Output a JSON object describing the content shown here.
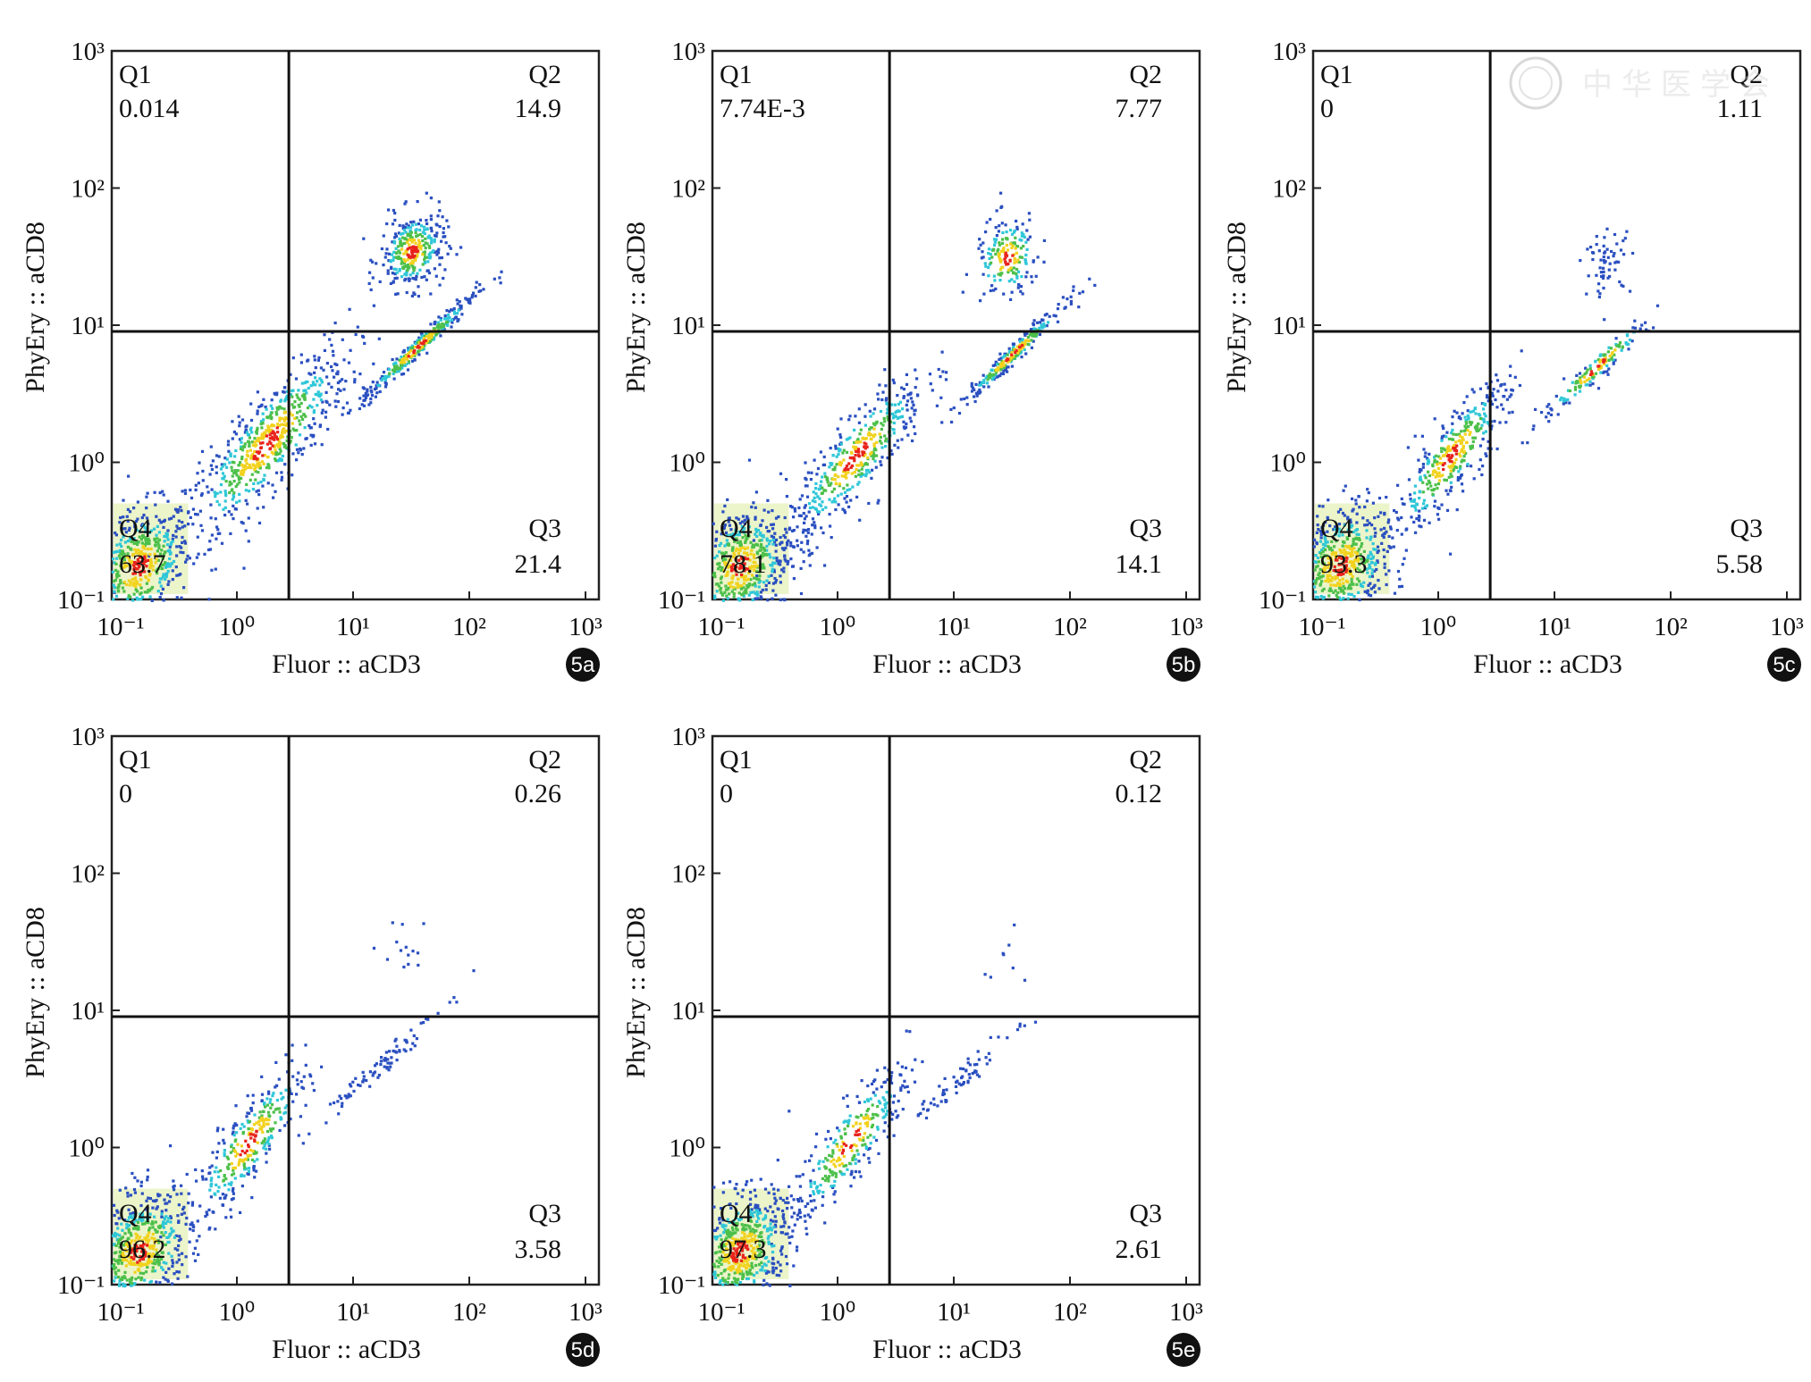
{
  "watermark": "中华医学会",
  "chart_data": [
    {
      "type": "scatter",
      "panel_label": "5a",
      "xlabel": "Fluor :: aCD3",
      "ylabel": "PhyEry :: aCD8",
      "xscale": "log",
      "yscale": "log",
      "xlim_log10": [
        -1,
        3
      ],
      "ylim_log10": [
        -1,
        3
      ],
      "x_ticks": [
        "10⁻¹",
        "10⁰",
        "10¹",
        "10²",
        "10³"
      ],
      "y_ticks": [
        "10⁻¹",
        "10⁰",
        "10¹",
        "10²",
        "10³"
      ],
      "gate": {
        "x": 2.8,
        "y": 9
      },
      "quadrants": {
        "Q1": {
          "label": "Q1",
          "value": "0.014"
        },
        "Q2": {
          "label": "Q2",
          "value": "14.9"
        },
        "Q3": {
          "label": "Q3",
          "value": "21.4"
        },
        "Q4": {
          "label": "Q4",
          "value": "63.7"
        }
      },
      "populations_log10": [
        {
          "cx": -0.85,
          "cy": -0.75,
          "sx": 0.22,
          "sy": 0.22,
          "rho": 0.3,
          "n": 520
        },
        {
          "cx": 0.25,
          "cy": 0.15,
          "sx": 0.35,
          "sy": 0.35,
          "rho": 0.85,
          "n": 650
        },
        {
          "cx": 1.5,
          "cy": 1.55,
          "sx": 0.14,
          "sy": 0.14,
          "rho": 0.2,
          "n": 320
        },
        {
          "cx": 1.55,
          "cy": 0.85,
          "sx": 0.25,
          "sy": 0.2,
          "rho": 0.98,
          "n": 320
        }
      ]
    },
    {
      "type": "scatter",
      "panel_label": "5b",
      "xlabel": "Fluor :: aCD3",
      "ylabel": "PhyEry :: aCD8",
      "xscale": "log",
      "yscale": "log",
      "xlim_log10": [
        -1,
        3
      ],
      "ylim_log10": [
        -1,
        3
      ],
      "x_ticks": [
        "10⁻¹",
        "10⁰",
        "10¹",
        "10²",
        "10³"
      ],
      "y_ticks": [
        "10⁻¹",
        "10⁰",
        "10¹",
        "10²",
        "10³"
      ],
      "gate": {
        "x": 2.8,
        "y": 9
      },
      "quadrants": {
        "Q1": {
          "label": "Q1",
          "value": "7.74E-3"
        },
        "Q2": {
          "label": "Q2",
          "value": "7.77"
        },
        "Q3": {
          "label": "Q3",
          "value": "14.1"
        },
        "Q4": {
          "label": "Q4",
          "value": "78.1"
        }
      },
      "populations_log10": [
        {
          "cx": -0.85,
          "cy": -0.75,
          "sx": 0.22,
          "sy": 0.22,
          "rho": 0.3,
          "n": 560
        },
        {
          "cx": 0.15,
          "cy": 0.05,
          "sx": 0.3,
          "sy": 0.3,
          "rho": 0.85,
          "n": 450
        },
        {
          "cx": 1.45,
          "cy": 1.5,
          "sx": 0.14,
          "sy": 0.15,
          "rho": 0.2,
          "n": 180
        },
        {
          "cx": 1.5,
          "cy": 0.8,
          "sx": 0.22,
          "sy": 0.18,
          "rho": 0.98,
          "n": 260
        }
      ]
    },
    {
      "type": "scatter",
      "panel_label": "5c",
      "xlabel": "Fluor :: aCD3",
      "ylabel": "PhyEry :: aCD8",
      "xscale": "log",
      "yscale": "log",
      "xlim_log10": [
        -1,
        3
      ],
      "ylim_log10": [
        -1,
        3
      ],
      "x_ticks": [
        "10⁻¹",
        "10⁰",
        "10¹",
        "10²",
        "10³"
      ],
      "y_ticks": [
        "10⁻¹",
        "10⁰",
        "10¹",
        "10²",
        "10³"
      ],
      "gate": {
        "x": 2.8,
        "y": 9
      },
      "quadrants": {
        "Q1": {
          "label": "Q1",
          "value": "0"
        },
        "Q2": {
          "label": "Q2",
          "value": "1.11"
        },
        "Q3": {
          "label": "Q3",
          "value": "5.58"
        },
        "Q4": {
          "label": "Q4",
          "value": "93.3"
        }
      },
      "populations_log10": [
        {
          "cx": -0.85,
          "cy": -0.75,
          "sx": 0.22,
          "sy": 0.22,
          "rho": 0.3,
          "n": 600
        },
        {
          "cx": 0.1,
          "cy": 0.05,
          "sx": 0.25,
          "sy": 0.28,
          "rho": 0.85,
          "n": 380
        },
        {
          "cx": 1.45,
          "cy": 1.45,
          "sx": 0.1,
          "sy": 0.12,
          "rho": 0.2,
          "n": 60
        },
        {
          "cx": 1.35,
          "cy": 0.7,
          "sx": 0.25,
          "sy": 0.2,
          "rho": 0.97,
          "n": 150
        }
      ]
    },
    {
      "type": "scatter",
      "panel_label": "5d",
      "xlabel": "Fluor :: aCD3",
      "ylabel": "PhyEry :: aCD8",
      "xscale": "log",
      "yscale": "log",
      "xlim_log10": [
        -1,
        3
      ],
      "ylim_log10": [
        -1,
        3
      ],
      "x_ticks": [
        "10⁻¹",
        "10⁰",
        "10¹",
        "10²",
        "10³"
      ],
      "y_ticks": [
        "10⁻¹",
        "10⁰",
        "10¹",
        "10²",
        "10³"
      ],
      "gate": {
        "x": 2.8,
        "y": 9
      },
      "quadrants": {
        "Q1": {
          "label": "Q1",
          "value": "0"
        },
        "Q2": {
          "label": "Q2",
          "value": "0.26"
        },
        "Q3": {
          "label": "Q3",
          "value": "3.58"
        },
        "Q4": {
          "label": "Q4",
          "value": "96.2"
        }
      },
      "populations_log10": [
        {
          "cx": -0.85,
          "cy": -0.75,
          "sx": 0.22,
          "sy": 0.22,
          "rho": 0.3,
          "n": 600
        },
        {
          "cx": 0.1,
          "cy": 0.05,
          "sx": 0.25,
          "sy": 0.28,
          "rho": 0.85,
          "n": 330
        },
        {
          "cx": 1.45,
          "cy": 1.5,
          "sx": 0.12,
          "sy": 0.12,
          "rho": 0.2,
          "n": 14
        },
        {
          "cx": 1.2,
          "cy": 0.6,
          "sx": 0.25,
          "sy": 0.2,
          "rho": 0.97,
          "n": 90
        }
      ]
    },
    {
      "type": "scatter",
      "panel_label": "5e",
      "xlabel": "Fluor :: aCD3",
      "ylabel": "PhyEry :: aCD8",
      "xscale": "log",
      "yscale": "log",
      "xlim_log10": [
        -1,
        3
      ],
      "ylim_log10": [
        -1,
        3
      ],
      "x_ticks": [
        "10⁻¹",
        "10⁰",
        "10¹",
        "10²",
        "10³"
      ],
      "y_ticks": [
        "10⁻¹",
        "10⁰",
        "10¹",
        "10²",
        "10³"
      ],
      "gate": {
        "x": 2.8,
        "y": 9
      },
      "quadrants": {
        "Q1": {
          "label": "Q1",
          "value": "0"
        },
        "Q2": {
          "label": "Q2",
          "value": "0.12"
        },
        "Q3": {
          "label": "Q3",
          "value": "2.61"
        },
        "Q4": {
          "label": "Q4",
          "value": "97.3"
        }
      },
      "populations_log10": [
        {
          "cx": -0.85,
          "cy": -0.75,
          "sx": 0.22,
          "sy": 0.22,
          "rho": 0.3,
          "n": 620
        },
        {
          "cx": 0.1,
          "cy": 0.05,
          "sx": 0.25,
          "sy": 0.28,
          "rho": 0.85,
          "n": 300
        },
        {
          "cx": 1.45,
          "cy": 1.4,
          "sx": 0.12,
          "sy": 0.12,
          "rho": 0.2,
          "n": 8
        },
        {
          "cx": 1.1,
          "cy": 0.55,
          "sx": 0.25,
          "sy": 0.2,
          "rho": 0.97,
          "n": 70
        }
      ]
    }
  ]
}
